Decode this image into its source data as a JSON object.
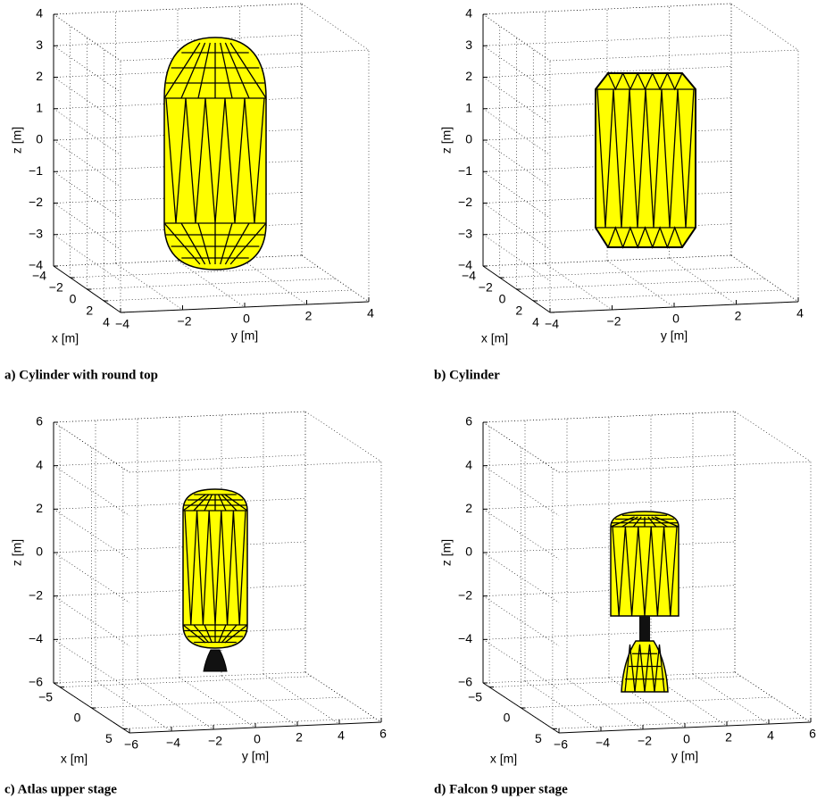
{
  "chart_data": [
    {
      "type": "surface3d",
      "caption": "a) Cylinder with round top",
      "xlabel": "x [m]",
      "ylabel": "y [m]",
      "zlabel": "z [m]",
      "xlim": [
        -4,
        4
      ],
      "ylim": [
        -4,
        4
      ],
      "zlim": [
        -4,
        4
      ],
      "xticks": [
        {
          "value": -4,
          "label": "−4"
        },
        {
          "value": -2,
          "label": "−2"
        },
        0,
        2,
        4
      ],
      "yticks": [
        {
          "value": -4,
          "label": "−4"
        },
        {
          "value": -2,
          "label": "−2"
        },
        0,
        2,
        4
      ],
      "zticks": [
        {
          "value": -4,
          "label": "−4"
        },
        {
          "value": -3,
          "label": "−3"
        },
        {
          "value": -2,
          "label": "−2"
        },
        {
          "value": -1,
          "label": "−1"
        },
        0,
        1,
        2,
        3,
        4
      ],
      "grid": true,
      "color": "#ffff00"
    },
    {
      "type": "surface3d",
      "caption": "b) Cylinder",
      "xlabel": "x [m]",
      "ylabel": "y [m]",
      "zlabel": "z [m]",
      "xlim": [
        -4,
        4
      ],
      "ylim": [
        -4,
        4
      ],
      "zlim": [
        -4,
        4
      ],
      "xticks": [
        {
          "value": -4,
          "label": "−4"
        },
        {
          "value": -2,
          "label": "−2"
        },
        0,
        2,
        4
      ],
      "yticks": [
        {
          "value": -4,
          "label": "−4"
        },
        {
          "value": -2,
          "label": "−2"
        },
        0,
        2,
        4
      ],
      "zticks": [
        {
          "value": -4,
          "label": "−4"
        },
        {
          "value": -3,
          "label": "−3"
        },
        {
          "value": -2,
          "label": "−2"
        },
        {
          "value": -1,
          "label": "−1"
        },
        0,
        1,
        2,
        3,
        4
      ],
      "grid": true,
      "color": "#ffff00"
    },
    {
      "type": "surface3d",
      "caption": "c) Atlas upper stage",
      "xlabel": "x [m]",
      "ylabel": "y [m]",
      "zlabel": "z [m]",
      "xlim": [
        -6,
        6
      ],
      "ylim": [
        -6,
        6
      ],
      "zlim": [
        -6,
        6
      ],
      "xticks": [
        {
          "value": -5,
          "label": "−5"
        },
        0,
        5
      ],
      "yticks": [
        {
          "value": -6,
          "label": "−6"
        },
        {
          "value": -4,
          "label": "−4"
        },
        {
          "value": -2,
          "label": "−2"
        },
        0,
        2,
        4,
        6
      ],
      "zticks": [
        {
          "value": -6,
          "label": "−6"
        },
        {
          "value": -4,
          "label": "−4"
        },
        {
          "value": -2,
          "label": "−2"
        },
        0,
        2,
        4,
        6
      ],
      "grid": true,
      "color": "#ffff00"
    },
    {
      "type": "surface3d",
      "caption": "d) Falcon 9 upper stage",
      "xlabel": "x [m]",
      "ylabel": "y [m]",
      "zlabel": "z [m]",
      "xlim": [
        -6,
        6
      ],
      "ylim": [
        -6,
        6
      ],
      "zlim": [
        -6,
        6
      ],
      "xticks": [
        {
          "value": -5,
          "label": "−5"
        },
        0,
        5
      ],
      "yticks": [
        {
          "value": -6,
          "label": "−6"
        },
        {
          "value": -4,
          "label": "−4"
        },
        {
          "value": -2,
          "label": "−2"
        },
        0,
        2,
        4,
        6
      ],
      "zticks": [
        {
          "value": -6,
          "label": "−6"
        },
        {
          "value": -4,
          "label": "−4"
        },
        {
          "value": -2,
          "label": "−2"
        },
        0,
        2,
        4,
        6
      ],
      "grid": true,
      "color": "#ffff00"
    }
  ]
}
